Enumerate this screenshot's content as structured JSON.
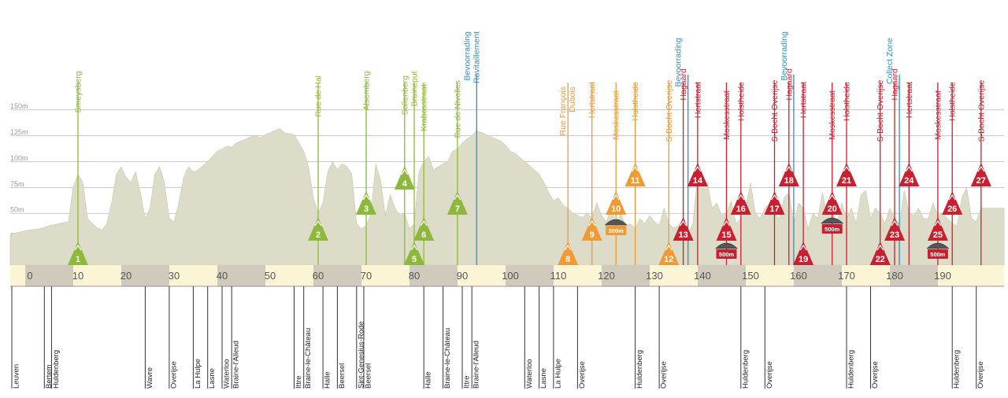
{
  "chart_data": {
    "type": "area",
    "title": "",
    "xlabel": "",
    "ylabel": "",
    "xlim": [
      -5,
      198
    ],
    "ylim": [
      0,
      175
    ],
    "grid": true,
    "y_ticks": [
      {
        "value": 25,
        "label": "25m"
      },
      {
        "value": 50,
        "label": "50m"
      },
      {
        "value": 75,
        "label": "75m"
      },
      {
        "value": 100,
        "label": "100m"
      },
      {
        "value": 125,
        "label": "125m"
      },
      {
        "value": 150,
        "label": "150m"
      }
    ],
    "x_ticks": [
      0,
      10,
      20,
      30,
      40,
      50,
      60,
      70,
      80,
      90,
      100,
      110,
      120,
      130,
      140,
      150,
      160,
      170,
      180,
      190
    ],
    "profile_color": "#dcdcc8",
    "profile": {
      "x": [
        -5,
        -4,
        -2,
        0,
        2,
        4,
        6,
        8,
        9,
        10,
        11,
        12,
        13,
        14,
        15,
        16,
        17,
        18,
        19,
        20,
        21,
        22,
        23,
        24,
        25,
        26,
        27,
        28,
        29,
        30,
        31,
        32,
        33,
        34,
        35,
        36,
        37,
        38,
        39,
        40,
        41,
        42,
        43,
        44,
        45,
        46,
        47,
        48,
        49,
        50,
        51,
        52,
        53,
        54,
        55,
        56,
        57,
        58,
        59,
        60,
        61,
        62,
        63,
        64,
        65,
        66,
        67,
        68,
        69,
        70,
        71,
        72,
        73,
        74,
        75,
        76,
        77,
        78,
        79,
        80,
        81,
        82,
        83,
        84,
        85,
        86,
        87,
        88,
        89,
        90,
        91,
        92,
        93,
        94,
        95,
        96,
        97,
        98,
        99,
        100,
        101,
        102,
        103,
        104,
        105,
        106,
        107,
        108,
        109,
        110,
        111,
        112,
        113,
        114,
        115,
        116,
        117,
        118,
        119,
        120,
        121,
        122,
        123,
        124,
        125,
        126,
        127,
        128,
        129,
        130,
        131,
        132,
        133,
        134,
        135,
        136,
        137,
        138,
        139,
        140,
        141,
        142,
        143,
        144,
        145,
        146,
        147,
        148,
        149,
        150,
        151,
        152,
        153,
        154,
        155,
        156,
        157,
        158,
        159,
        160,
        161,
        162,
        163,
        164,
        165,
        166,
        167,
        168,
        169,
        170,
        171,
        172,
        173,
        174,
        175,
        176,
        177,
        178,
        179,
        180,
        181,
        182,
        183,
        184,
        185,
        186,
        187,
        188,
        189,
        190,
        191,
        192,
        193,
        194,
        195,
        196,
        197,
        198
      ],
      "y": [
        25,
        30,
        32,
        34,
        35,
        38,
        40,
        42,
        75,
        88,
        80,
        45,
        40,
        36,
        34,
        40,
        60,
        88,
        95,
        85,
        80,
        90,
        70,
        45,
        55,
        88,
        95,
        80,
        45,
        42,
        60,
        85,
        95,
        90,
        92,
        96,
        100,
        105,
        110,
        112,
        115,
        114,
        118,
        120,
        122,
        124,
        125,
        123,
        126,
        128,
        130,
        132,
        128,
        127,
        126,
        118,
        110,
        95,
        65,
        50,
        60,
        90,
        100,
        92,
        98,
        95,
        88,
        40,
        35,
        38,
        50,
        98,
        82,
        48,
        68,
        55,
        48,
        50,
        35,
        40,
        90,
        100,
        105,
        92,
        95,
        98,
        100,
        110,
        112,
        118,
        122,
        125,
        130,
        128,
        126,
        124,
        122,
        120,
        116,
        110,
        108,
        104,
        100,
        96,
        92,
        88,
        80,
        70,
        62,
        65,
        58,
        55,
        50,
        48,
        46,
        50,
        45,
        60,
        48,
        42,
        55,
        40,
        50,
        38,
        40,
        35,
        45,
        40,
        48,
        42,
        38,
        55,
        40,
        36,
        38,
        45,
        30,
        40,
        88,
        78,
        80,
        55,
        60,
        48,
        50,
        62,
        40,
        45,
        55,
        80,
        50,
        45,
        55,
        60,
        50,
        45,
        65,
        70,
        40,
        60,
        55,
        35,
        50,
        45,
        70,
        48,
        52,
        40,
        60,
        45,
        55,
        40,
        68,
        72,
        45,
        55,
        50,
        40,
        55,
        45,
        40,
        72,
        50,
        48,
        55,
        45,
        45,
        60,
        48,
        50,
        45,
        40,
        38,
        65,
        75,
        45,
        42,
        55
      ]
    },
    "climbs": [
      {
        "num": 1,
        "km": 10,
        "name": "Smeysberg",
        "color": "#8db83c",
        "level": 1,
        "label_top": 40
      },
      {
        "num": 2,
        "km": 60,
        "name": "Rue de Hal",
        "color": "#8db83c",
        "level": 3,
        "label_top": 40
      },
      {
        "num": 3,
        "km": 70,
        "name": "Alsemberg",
        "color": "#8db83c",
        "level": 4,
        "label_top": 40
      },
      {
        "num": 4,
        "km": 78,
        "name": "Sollenberg",
        "color": "#8db83c",
        "level": 5,
        "label_top": 40
      },
      {
        "num": 5,
        "km": 80,
        "name": "Bruineput",
        "color": "#8db83c",
        "level": 1,
        "label_top": 40
      },
      {
        "num": 6,
        "km": 82,
        "name": "Krabosstraat",
        "color": "#8db83c",
        "level": 3,
        "label_top": 40
      },
      {
        "num": 7,
        "km": 89,
        "name": "Rue de Nivelles",
        "color": "#8db83c",
        "level": 4,
        "label_top": 18
      },
      {
        "num": 8,
        "km": 112,
        "name": "Rue François Dubois",
        "color": "#f09a35",
        "level": 1,
        "label_top": 36
      },
      {
        "num": 9,
        "km": 117,
        "name": "Hertstraat",
        "color": "#f09a35",
        "level": 3,
        "label_top": 48
      },
      {
        "num": 10,
        "km": 122,
        "name": "Moskesstraat",
        "color": "#f09a35",
        "level": 4,
        "label_top": 48
      },
      {
        "num": 11,
        "km": 126,
        "name": "Holstheide",
        "color": "#f09a35",
        "level": 6,
        "label_top": 48
      },
      {
        "num": 12,
        "km": 133,
        "name": "S-Bocht Overijse",
        "color": "#f09a35",
        "level": 1,
        "label_top": 12
      },
      {
        "num": 13,
        "km": 136,
        "name": "Hagaard",
        "color": "#c8202e",
        "level": 3,
        "label_top": 48
      },
      {
        "num": 14,
        "km": 139,
        "name": "Hertstraat",
        "color": "#c8202e",
        "level": 6,
        "label_top": 48
      },
      {
        "num": 15,
        "km": 145,
        "name": "Moskesstraat",
        "color": "#c8202e",
        "level": 3,
        "label_top": 48
      },
      {
        "num": 16,
        "km": 148,
        "name": "Holstheide",
        "color": "#c8202e",
        "level": 4,
        "label_top": 48
      },
      {
        "num": 17,
        "km": 155,
        "name": "S-Bocht Overijse",
        "color": "#c8202e",
        "level": 4,
        "label_top": 12
      },
      {
        "num": 18,
        "km": 158,
        "name": "Hagaard",
        "color": "#c8202e",
        "level": 6,
        "label_top": 48
      },
      {
        "num": 19,
        "km": 161,
        "name": "Hertstraat",
        "color": "#c8202e",
        "level": 1,
        "label_top": 48
      },
      {
        "num": 20,
        "km": 167,
        "name": "Moskesstraat",
        "color": "#c8202e",
        "level": 4,
        "label_top": 48
      },
      {
        "num": 21,
        "km": 170,
        "name": "Holstheide",
        "color": "#c8202e",
        "level": 6,
        "label_top": 48
      },
      {
        "num": 22,
        "km": 177,
        "name": "S-Bocht Overijse",
        "color": "#c8202e",
        "level": 1,
        "label_top": 12
      },
      {
        "num": 23,
        "km": 180,
        "name": "Hagaard",
        "color": "#c8202e",
        "level": 3,
        "label_top": 48
      },
      {
        "num": 24,
        "km": 183,
        "name": "Hertstraat",
        "color": "#c8202e",
        "level": 6,
        "label_top": 48
      },
      {
        "num": 25,
        "km": 189,
        "name": "Moskesstraat",
        "color": "#c8202e",
        "level": 3,
        "label_top": 48
      },
      {
        "num": 26,
        "km": 192,
        "name": "Holstheide",
        "color": "#c8202e",
        "level": 4,
        "label_top": 48
      },
      {
        "num": 27,
        "km": 198,
        "name": "S-Bocht Overijse",
        "color": "#c8202e",
        "level": 6,
        "label_top": 12
      }
    ],
    "feed_zones": [
      {
        "km": 93,
        "label": "Bevoorrading",
        "color": "#2e8fc4",
        "label_top": 40
      },
      {
        "km": 93,
        "label": "Ravitaillement",
        "color": "#2e8fc4",
        "label_top": 40
      },
      {
        "km": 137,
        "label": "Bevoorrading",
        "color": "#2e8fc4",
        "label_top": 48
      },
      {
        "km": 159,
        "label": "Bevoorrading",
        "color": "#2e8fc4",
        "label_top": 40
      },
      {
        "km": 181,
        "label": "Collect Zone",
        "color": "#2e8fc4",
        "label_top": 48
      }
    ],
    "cobbles": [
      {
        "km": 122,
        "label": "500m"
      },
      {
        "km": 145,
        "label": "500m"
      },
      {
        "km": 167,
        "label": "500m"
      },
      {
        "km": 189,
        "label": "500m"
      }
    ],
    "towns": [
      {
        "km": -5,
        "name": "Leuven"
      },
      {
        "km": 3,
        "name": "Bertem"
      },
      {
        "km": 4.5,
        "name": "Huldenberg"
      },
      {
        "km": 24,
        "name": "Wavre"
      },
      {
        "km": 29,
        "name": "Overijse"
      },
      {
        "km": 34,
        "name": "La Hulpe"
      },
      {
        "km": 37,
        "name": "Lasne"
      },
      {
        "km": 40,
        "name": "Waterloo"
      },
      {
        "km": 42,
        "name": "Braine-l'Alleud"
      },
      {
        "km": 55,
        "name": "Ittre"
      },
      {
        "km": 57,
        "name": "Braine-le-Château"
      },
      {
        "km": 61,
        "name": "Halle"
      },
      {
        "km": 64,
        "name": "Beersel"
      },
      {
        "km": 68,
        "name": "Sint-Genesius-Rode"
      },
      {
        "km": 69.5,
        "name": "Beersel"
      },
      {
        "km": 82,
        "name": "Halle"
      },
      {
        "km": 86,
        "name": "Braine-le-Château"
      },
      {
        "km": 90,
        "name": "Ittre"
      },
      {
        "km": 92,
        "name": "Braine-l'Alleud"
      },
      {
        "km": 103,
        "name": "Waterloo"
      },
      {
        "km": 106,
        "name": "Lasne"
      },
      {
        "km": 109,
        "name": "La Hulpe"
      },
      {
        "km": 114,
        "name": "Overijse"
      },
      {
        "km": 126,
        "name": "Huldenberg"
      },
      {
        "km": 131,
        "name": "Overijse"
      },
      {
        "km": 148,
        "name": "Huldenberg"
      },
      {
        "km": 153,
        "name": "Overijse"
      },
      {
        "km": 170,
        "name": "Huldenberg"
      },
      {
        "km": 175,
        "name": "Overijse"
      },
      {
        "km": 192,
        "name": "Huldenberg"
      },
      {
        "km": 197,
        "name": "Overijse"
      }
    ]
  }
}
